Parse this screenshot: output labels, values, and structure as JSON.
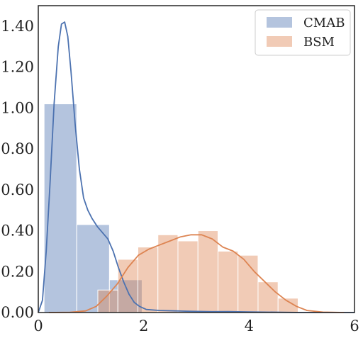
{
  "chart_data": {
    "type": "bar",
    "subtype": "histogram-with-kde",
    "title": "",
    "xlabel": "",
    "ylabel": "",
    "xlim": [
      0,
      6
    ],
    "ylim": [
      0,
      1.5
    ],
    "x_ticks": [
      0,
      2,
      4,
      6
    ],
    "x_tick_labels": [
      "0",
      "2",
      "4",
      "6"
    ],
    "y_ticks": [
      0,
      0.2,
      0.4,
      0.6,
      0.8,
      1.0,
      1.2,
      1.4
    ],
    "y_tick_labels": [
      "0.00",
      "0.20",
      "0.40",
      "0.60",
      "0.80",
      "1.00",
      "1.20",
      "1.40"
    ],
    "grid": false,
    "legend_position": "top-right",
    "series": [
      {
        "name": "CMAB",
        "color": "#4c72b0",
        "hist_bins": [
          {
            "x0": 0.11,
            "x1": 0.73,
            "value": 1.02
          },
          {
            "x0": 0.73,
            "x1": 1.35,
            "value": 0.43
          },
          {
            "x0": 1.35,
            "x1": 1.97,
            "value": 0.16
          }
        ],
        "kde": [
          [
            0.0,
            0.0
          ],
          [
            0.08,
            0.06
          ],
          [
            0.15,
            0.3
          ],
          [
            0.22,
            0.62
          ],
          [
            0.3,
            1.02
          ],
          [
            0.38,
            1.3
          ],
          [
            0.44,
            1.41
          ],
          [
            0.5,
            1.42
          ],
          [
            0.56,
            1.35
          ],
          [
            0.62,
            1.18
          ],
          [
            0.7,
            0.92
          ],
          [
            0.78,
            0.7
          ],
          [
            0.86,
            0.56
          ],
          [
            0.94,
            0.5
          ],
          [
            1.02,
            0.46
          ],
          [
            1.12,
            0.42
          ],
          [
            1.22,
            0.39
          ],
          [
            1.32,
            0.36
          ],
          [
            1.42,
            0.3
          ],
          [
            1.52,
            0.22
          ],
          [
            1.62,
            0.15
          ],
          [
            1.72,
            0.09
          ],
          [
            1.82,
            0.05
          ],
          [
            1.92,
            0.03
          ],
          [
            2.05,
            0.015
          ],
          [
            2.3,
            0.01
          ],
          [
            2.6,
            0.008
          ],
          [
            2.9,
            0.006
          ],
          [
            3.3,
            0.004
          ],
          [
            3.6,
            0.005
          ],
          [
            4.0,
            0.003
          ],
          [
            5.0,
            0.0
          ],
          [
            6.0,
            0.0
          ]
        ]
      },
      {
        "name": "BSM",
        "color": "#dd8452",
        "hist_bins": [
          {
            "x0": 1.13,
            "x1": 1.51,
            "value": 0.11
          },
          {
            "x0": 1.51,
            "x1": 1.89,
            "value": 0.26
          },
          {
            "x0": 1.89,
            "x1": 2.27,
            "value": 0.32
          },
          {
            "x0": 2.27,
            "x1": 2.65,
            "value": 0.38
          },
          {
            "x0": 2.65,
            "x1": 3.03,
            "value": 0.35
          },
          {
            "x0": 3.03,
            "x1": 3.41,
            "value": 0.4
          },
          {
            "x0": 3.41,
            "x1": 3.79,
            "value": 0.3
          },
          {
            "x0": 3.79,
            "x1": 4.17,
            "value": 0.28
          },
          {
            "x0": 4.17,
            "x1": 4.55,
            "value": 0.15
          },
          {
            "x0": 4.55,
            "x1": 4.93,
            "value": 0.07
          }
        ],
        "kde": [
          [
            0.2,
            0.0
          ],
          [
            0.6,
            0.001
          ],
          [
            0.9,
            0.008
          ],
          [
            1.1,
            0.03
          ],
          [
            1.3,
            0.08
          ],
          [
            1.5,
            0.14
          ],
          [
            1.7,
            0.22
          ],
          [
            1.9,
            0.28
          ],
          [
            2.1,
            0.31
          ],
          [
            2.3,
            0.33
          ],
          [
            2.5,
            0.35
          ],
          [
            2.7,
            0.37
          ],
          [
            2.9,
            0.38
          ],
          [
            3.1,
            0.38
          ],
          [
            3.3,
            0.36
          ],
          [
            3.5,
            0.32
          ],
          [
            3.7,
            0.3
          ],
          [
            3.9,
            0.26
          ],
          [
            4.1,
            0.2
          ],
          [
            4.3,
            0.15
          ],
          [
            4.5,
            0.1
          ],
          [
            4.7,
            0.06
          ],
          [
            4.9,
            0.03
          ],
          [
            5.1,
            0.01
          ],
          [
            5.4,
            0.002
          ],
          [
            5.8,
            0.0
          ]
        ]
      }
    ]
  }
}
